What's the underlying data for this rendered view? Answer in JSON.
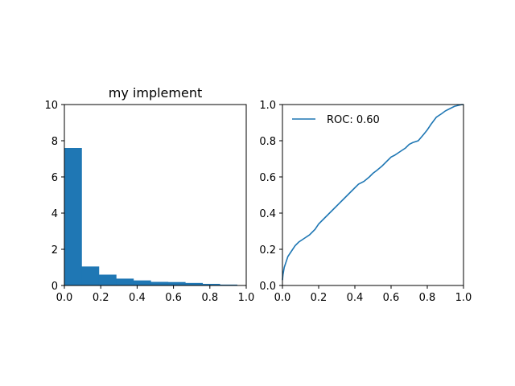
{
  "chart_data": [
    {
      "type": "bar",
      "title": "my implement",
      "xlabel": "",
      "ylabel": "",
      "xlim": [
        0,
        1
      ],
      "ylim": [
        0,
        10
      ],
      "xticks": [
        "0.0",
        "0.2",
        "0.4",
        "0.6",
        "0.8",
        "1.0"
      ],
      "yticks": [
        "0",
        "2",
        "4",
        "6",
        "8",
        "10"
      ],
      "bins": [
        {
          "start": 0.0,
          "end": 0.095,
          "value": 7.6
        },
        {
          "start": 0.095,
          "end": 0.19,
          "value": 1.05
        },
        {
          "start": 0.19,
          "end": 0.285,
          "value": 0.6
        },
        {
          "start": 0.285,
          "end": 0.38,
          "value": 0.38
        },
        {
          "start": 0.38,
          "end": 0.475,
          "value": 0.28
        },
        {
          "start": 0.475,
          "end": 0.57,
          "value": 0.2
        },
        {
          "start": 0.57,
          "end": 0.665,
          "value": 0.19
        },
        {
          "start": 0.665,
          "end": 0.76,
          "value": 0.14
        },
        {
          "start": 0.76,
          "end": 0.855,
          "value": 0.09
        },
        {
          "start": 0.855,
          "end": 0.95,
          "value": 0.05
        }
      ],
      "color": "#1f77b4"
    },
    {
      "type": "line",
      "title": "",
      "xlabel": "",
      "ylabel": "",
      "xlim": [
        0,
        1
      ],
      "ylim": [
        0,
        1
      ],
      "xticks": [
        "0.0",
        "0.2",
        "0.4",
        "0.6",
        "0.8",
        "1.0"
      ],
      "yticks": [
        "0.0",
        "0.2",
        "0.4",
        "0.6",
        "0.8",
        "1.0"
      ],
      "legend": "top-left",
      "series": [
        {
          "name": "ROC: 0.60",
          "color": "#1f77b4",
          "x": [
            0.0,
            0.003,
            0.01,
            0.02,
            0.03,
            0.05,
            0.07,
            0.09,
            0.12,
            0.15,
            0.18,
            0.2,
            0.22,
            0.25,
            0.28,
            0.3,
            0.33,
            0.36,
            0.38,
            0.4,
            0.42,
            0.45,
            0.48,
            0.5,
            0.52,
            0.55,
            0.58,
            0.6,
            0.62,
            0.65,
            0.68,
            0.7,
            0.72,
            0.75,
            0.78,
            0.8,
            0.82,
            0.85,
            0.88,
            0.9,
            0.92,
            0.95,
            0.97,
            0.99,
            1.0
          ],
          "y": [
            0.03,
            0.06,
            0.1,
            0.13,
            0.16,
            0.19,
            0.22,
            0.24,
            0.26,
            0.28,
            0.31,
            0.34,
            0.36,
            0.39,
            0.42,
            0.44,
            0.47,
            0.5,
            0.52,
            0.54,
            0.56,
            0.575,
            0.6,
            0.62,
            0.635,
            0.66,
            0.69,
            0.71,
            0.72,
            0.74,
            0.76,
            0.78,
            0.79,
            0.8,
            0.835,
            0.86,
            0.89,
            0.93,
            0.95,
            0.965,
            0.975,
            0.99,
            0.995,
            1.0,
            1.0
          ]
        }
      ]
    }
  ]
}
